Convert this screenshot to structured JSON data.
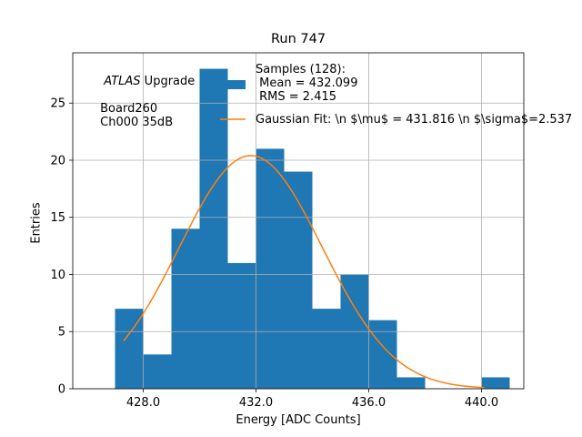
{
  "chart_data": {
    "type": "bar",
    "title": "Run 747",
    "xlabel": "Energy [ADC Counts]",
    "ylabel": "Entries",
    "xlim": [
      425.5,
      441.5
    ],
    "ylim": [
      0,
      29.4
    ],
    "grid": true,
    "bin_edges": [
      427.0,
      428.0,
      429.0,
      430.0,
      431.0,
      432.0,
      433.0,
      434.0,
      435.0,
      436.0,
      437.0,
      438.0,
      439.0,
      440.0,
      441.0
    ],
    "values": [
      7,
      3,
      14,
      28,
      11,
      21,
      19,
      7,
      10,
      6,
      1,
      0,
      0,
      1
    ],
    "bar_color": "#1f77b4",
    "fit": {
      "name": "Gaussian Fit",
      "type": "gaussian",
      "mean": 431.816,
      "sigma": 2.537,
      "amplitude": 20.4,
      "x_range": [
        427.3,
        440.1
      ],
      "color": "#ff7f0e"
    },
    "x_ticks": [
      428.0,
      432.0,
      436.0,
      440.0
    ],
    "x_tick_labels": [
      "428.0",
      "432.0",
      "436.0",
      "440.0"
    ],
    "y_ticks": [
      0,
      5,
      10,
      15,
      20,
      25
    ],
    "y_tick_labels": [
      "0",
      "5",
      "10",
      "15",
      "20",
      "25"
    ],
    "legend": {
      "placement": "top-right",
      "samples_label": "Samples (128):\n Mean = 432.099\n RMS = 2.415",
      "fit_label": "Gaussian Fit: \\n $\\mu$ = 431.816 \\n $\\sigma$=2.537"
    },
    "annotation": {
      "experiment": "ATLAS",
      "experiment_suffix": " Upgrade",
      "lines": " Board260\n Ch000 35dB"
    }
  }
}
